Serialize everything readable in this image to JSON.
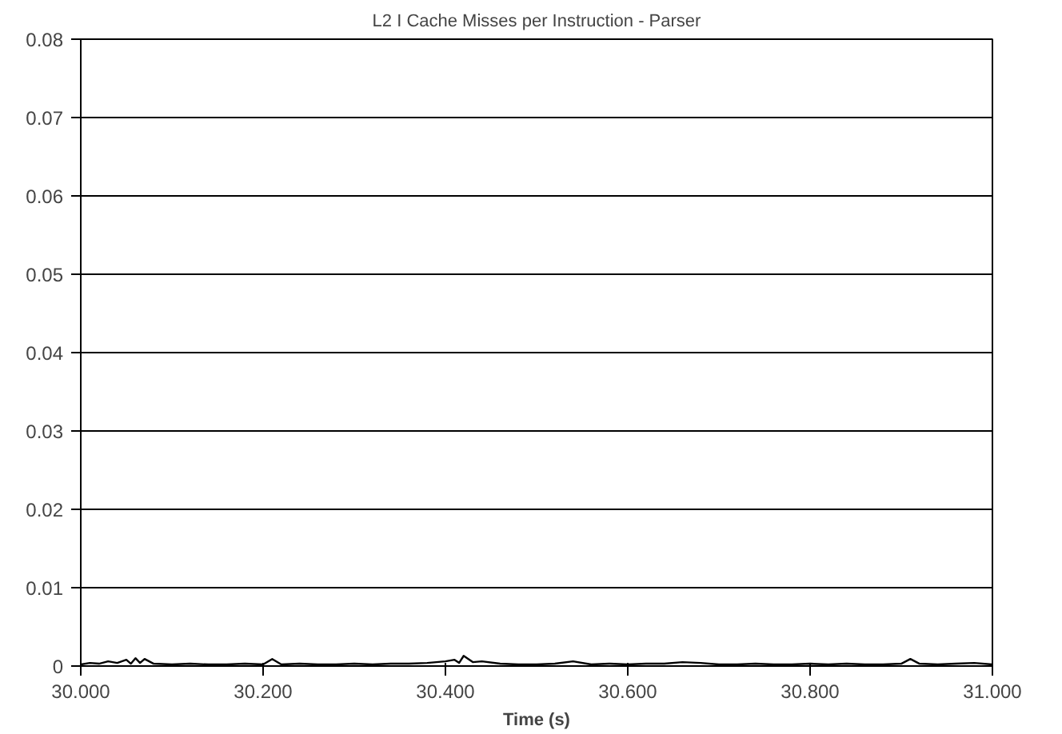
{
  "chart_data": {
    "type": "line",
    "title": "L2 I Cache Misses per Instruction - Parser",
    "xlabel": "Time (s)",
    "x": [
      30.0,
      30.01,
      30.02,
      30.03,
      30.04,
      30.05,
      30.055,
      30.06,
      30.065,
      30.07,
      30.08,
      30.1,
      30.12,
      30.14,
      30.16,
      30.18,
      30.2,
      30.21,
      30.22,
      30.24,
      30.26,
      30.28,
      30.3,
      30.32,
      30.34,
      30.36,
      30.38,
      30.4,
      30.41,
      30.415,
      30.42,
      30.43,
      30.44,
      30.46,
      30.48,
      30.5,
      30.52,
      30.54,
      30.56,
      30.58,
      30.6,
      30.62,
      30.64,
      30.66,
      30.68,
      30.7,
      30.72,
      30.74,
      30.76,
      30.78,
      30.8,
      30.82,
      30.84,
      30.86,
      30.88,
      30.9,
      30.91,
      30.92,
      30.94,
      30.96,
      30.98,
      31.0
    ],
    "series": [
      {
        "color": "#000000",
        "values": [
          0.0002,
          0.0004,
          0.0003,
          0.0006,
          0.0004,
          0.0008,
          0.0003,
          0.001,
          0.0004,
          0.0009,
          0.0003,
          0.0002,
          0.0003,
          0.0002,
          0.0002,
          0.0003,
          0.0002,
          0.0009,
          0.0002,
          0.0003,
          0.0002,
          0.0002,
          0.0003,
          0.0002,
          0.0003,
          0.0003,
          0.0004,
          0.0006,
          0.0008,
          0.0004,
          0.0013,
          0.0005,
          0.0006,
          0.0003,
          0.0002,
          0.0002,
          0.0003,
          0.0006,
          0.0002,
          0.0003,
          0.0002,
          0.0003,
          0.0003,
          0.0005,
          0.0004,
          0.0002,
          0.0002,
          0.0003,
          0.0002,
          0.0002,
          0.0003,
          0.0002,
          0.0003,
          0.0002,
          0.0002,
          0.0003,
          0.0009,
          0.0003,
          0.0002,
          0.0003,
          0.0004,
          0.0002
        ]
      }
    ],
    "xlim": [
      30.0,
      31.0
    ],
    "ylim": [
      0,
      0.08
    ],
    "xticks": [
      {
        "value": 30.0,
        "label": "30.000"
      },
      {
        "value": 30.2,
        "label": "30.200"
      },
      {
        "value": 30.4,
        "label": "30.400"
      },
      {
        "value": 30.6,
        "label": "30.600"
      },
      {
        "value": 30.8,
        "label": "30.800"
      },
      {
        "value": 31.0,
        "label": "31.000"
      }
    ],
    "yticks": [
      0,
      0.01,
      0.02,
      0.03,
      0.04,
      0.05,
      0.06,
      0.07,
      0.08
    ],
    "grid": "y",
    "marker": "none",
    "line_style": "solid"
  }
}
